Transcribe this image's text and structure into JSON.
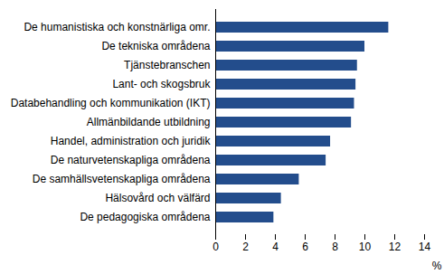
{
  "chart_data": {
    "type": "bar",
    "orientation": "horizontal",
    "categories": [
      "De humanistiska och konstnärliga omr.",
      "De tekniska områdena",
      "Tjänstebranschen",
      "Lant- och skogsbruk",
      "Databehandling och kommunikation (IKT)",
      "Allmänbildande utbildning",
      "Handel, administration och juridik",
      "De naturvetenskapliga områdena",
      "De samhällsvetenskapliga områdena",
      "Hälsovård och välfärd",
      "De pedagogiska områdena"
    ],
    "values": [
      11.6,
      10.0,
      9.5,
      9.4,
      9.3,
      9.1,
      7.7,
      7.4,
      5.6,
      4.4,
      3.9
    ],
    "color": "#234d8c",
    "xlabel": "%",
    "xlim": [
      0,
      14
    ],
    "xticks": [
      0,
      2,
      4,
      6,
      8,
      10,
      12,
      14
    ],
    "grid": false
  }
}
